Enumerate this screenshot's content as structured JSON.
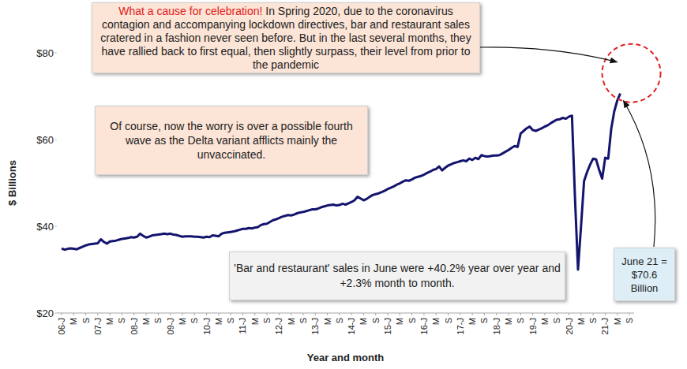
{
  "chart_data": {
    "type": "line",
    "xlabel": "Year and month",
    "ylabel": "$ Billions",
    "color": "#14146e",
    "grid": false,
    "ylim": [
      20,
      80
    ],
    "yticks": [
      {
        "value": 20,
        "label": "$20"
      },
      {
        "value": 40,
        "label": "$40"
      },
      {
        "value": 60,
        "label": "$60"
      },
      {
        "value": 80,
        "label": "$80"
      }
    ],
    "annotations": [
      {
        "highlight": "What a cause for celebration!",
        "text": "In Spring 2020, due to the coronavirus contagion and accompanying lockdown directives, bar and restaurant sales cratered in a fashion never seen before. But in the last several months, they have rallied back to first equal, then slightly surpass, their level from prior to the pandemic"
      },
      {
        "text": "Of course, now the worry is over a possible fourth wave as the Delta variant afflicts mainly the unvaccinated."
      },
      {
        "text": "'Bar and restaurant' sales in June were +40.2% year over year and +2.3% month to month."
      },
      {
        "text": "June 21 = $70.6 Billion"
      }
    ],
    "categories": [
      "06-J",
      null,
      null,
      null,
      "M",
      null,
      null,
      null,
      "S",
      null,
      null,
      null,
      "07-J",
      null,
      null,
      null,
      "M",
      null,
      null,
      null,
      "S",
      null,
      null,
      null,
      "08-J",
      null,
      null,
      null,
      "M",
      null,
      null,
      null,
      "S",
      null,
      null,
      null,
      "09-J",
      null,
      null,
      null,
      "M",
      null,
      null,
      null,
      "S",
      null,
      null,
      null,
      "10-J",
      null,
      null,
      null,
      "M",
      null,
      null,
      null,
      "S",
      null,
      null,
      null,
      "11-J",
      null,
      null,
      null,
      "M",
      null,
      null,
      null,
      "S",
      null,
      null,
      null,
      "12-J",
      null,
      null,
      null,
      "M",
      null,
      null,
      null,
      "S",
      null,
      null,
      null,
      "13-J",
      null,
      null,
      null,
      "M",
      null,
      null,
      null,
      "S",
      null,
      null,
      null,
      "14-J",
      null,
      null,
      null,
      "M",
      null,
      null,
      null,
      "S",
      null,
      null,
      null,
      "15-J",
      null,
      null,
      null,
      "M",
      null,
      null,
      null,
      "S",
      null,
      null,
      null,
      "16-J",
      null,
      null,
      null,
      "M",
      null,
      null,
      null,
      "S",
      null,
      null,
      null,
      "17-J",
      null,
      null,
      null,
      "M",
      null,
      null,
      null,
      "S",
      null,
      null,
      null,
      "18-J",
      null,
      null,
      null,
      "M",
      null,
      null,
      null,
      "S",
      null,
      null,
      null,
      "19-J",
      null,
      null,
      null,
      "M",
      null,
      null,
      null,
      "S",
      null,
      null,
      null,
      "20-J",
      null,
      null,
      null,
      "M",
      null,
      null,
      null,
      "S",
      null,
      null,
      null,
      "21-J",
      null,
      null,
      null,
      "M",
      null,
      null,
      null,
      "S"
    ],
    "values": [
      34.9,
      34.6,
      34.8,
      34.9,
      34.8,
      34.7,
      35.0,
      35.3,
      35.6,
      35.8,
      35.9,
      36.0,
      36.1,
      37.0,
      36.4,
      36.0,
      36.5,
      36.6,
      36.7,
      36.9,
      37.1,
      37.2,
      37.3,
      37.5,
      37.4,
      37.6,
      38.3,
      37.8,
      37.4,
      37.6,
      37.9,
      38.0,
      38.1,
      38.2,
      38.3,
      38.2,
      38.3,
      38.1,
      38.0,
      37.8,
      37.6,
      37.7,
      37.7,
      37.7,
      37.6,
      37.6,
      37.5,
      37.4,
      37.6,
      37.5,
      37.9,
      37.8,
      37.7,
      38.3,
      38.5,
      38.6,
      38.7,
      38.8,
      39.0,
      39.2,
      39.4,
      39.4,
      39.6,
      39.5,
      39.7,
      39.8,
      40.3,
      40.5,
      40.6,
      41.0,
      41.4,
      41.6,
      41.9,
      42.2,
      42.4,
      42.6,
      42.5,
      42.7,
      43.0,
      43.2,
      43.3,
      43.5,
      43.7,
      43.9,
      43.9,
      44.1,
      44.4,
      44.6,
      44.8,
      44.9,
      45.0,
      44.8,
      44.9,
      45.2,
      45.0,
      45.3,
      45.6,
      46.0,
      46.8,
      46.4,
      46.0,
      46.3,
      46.8,
      47.2,
      47.4,
      47.6,
      47.9,
      48.2,
      48.6,
      48.9,
      49.2,
      49.6,
      49.9,
      50.3,
      50.6,
      50.5,
      50.8,
      51.2,
      51.4,
      51.6,
      51.9,
      52.3,
      52.6,
      53.0,
      53.2,
      53.8,
      52.9,
      53.5,
      54.0,
      54.3,
      54.6,
      54.8,
      55.0,
      55.2,
      55.0,
      55.6,
      55.3,
      55.8,
      55.5,
      56.4,
      56.2,
      56.1,
      56.2,
      56.3,
      56.3,
      56.4,
      56.8,
      57.2,
      57.6,
      58.1,
      58.5,
      58.3,
      61.4,
      62.0,
      62.6,
      63.0,
      62.2,
      62.0,
      62.3,
      62.6,
      63.0,
      63.3,
      63.8,
      64.2,
      64.6,
      64.7,
      65.0,
      64.8,
      65.3,
      65.5,
      46.5,
      30.0,
      40.0,
      50.4,
      52.5,
      54.2,
      55.6,
      55.4,
      53.0,
      51.0,
      55.8,
      55.6,
      62.5,
      66.5,
      69.0,
      70.6,
      null,
      null,
      null
    ]
  }
}
